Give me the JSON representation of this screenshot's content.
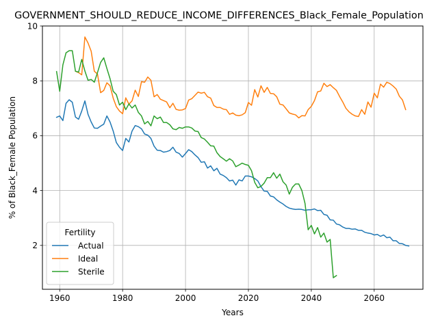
{
  "chart_data": {
    "type": "line",
    "title": "GOVERNMENT_SHOULD_REDUCE_INCOME_DIFFERENCES_Black_Female_Population",
    "xlabel": "Years",
    "ylabel": "% of Black_Female Population",
    "xlim": [
      1954.5,
      2075.5
    ],
    "ylim": [
      0.4,
      10.0
    ],
    "xticks": [
      1960,
      1980,
      2000,
      2020,
      2040,
      2060
    ],
    "yticks": [
      2,
      4,
      6,
      8,
      10
    ],
    "grid": true,
    "legend": {
      "title": "Fertility",
      "placement": "lower-left"
    },
    "series": [
      {
        "name": "Actual",
        "color": "#1f77b4",
        "points": [
          [
            1959,
            6.67
          ],
          [
            1960,
            6.72
          ],
          [
            1961,
            6.55
          ],
          [
            1962,
            7.18
          ],
          [
            1963,
            7.31
          ],
          [
            1964,
            7.22
          ],
          [
            1965,
            6.68
          ],
          [
            1966,
            6.6
          ],
          [
            1967,
            6.9
          ],
          [
            1968,
            7.27
          ],
          [
            1969,
            6.78
          ],
          [
            1970,
            6.5
          ],
          [
            1971,
            6.28
          ],
          [
            1972,
            6.27
          ],
          [
            1973,
            6.35
          ],
          [
            1974,
            6.42
          ],
          [
            1975,
            6.72
          ],
          [
            1976,
            6.5
          ],
          [
            1977,
            6.17
          ],
          [
            1978,
            5.75
          ],
          [
            1979,
            5.58
          ],
          [
            1980,
            5.46
          ],
          [
            1981,
            5.9
          ],
          [
            1982,
            5.77
          ],
          [
            1983,
            6.17
          ],
          [
            1984,
            6.37
          ],
          [
            1985,
            6.33
          ],
          [
            1986,
            6.25
          ],
          [
            1987,
            6.06
          ],
          [
            1988,
            6.02
          ],
          [
            1989,
            5.9
          ],
          [
            1990,
            5.62
          ],
          [
            1991,
            5.47
          ],
          [
            1992,
            5.46
          ],
          [
            1993,
            5.4
          ],
          [
            1994,
            5.42
          ],
          [
            1995,
            5.46
          ],
          [
            1996,
            5.58
          ],
          [
            1997,
            5.4
          ],
          [
            1998,
            5.35
          ],
          [
            1999,
            5.22
          ],
          [
            2000,
            5.35
          ],
          [
            2001,
            5.49
          ],
          [
            2002,
            5.42
          ],
          [
            2003,
            5.3
          ],
          [
            2004,
            5.2
          ],
          [
            2005,
            5.03
          ],
          [
            2006,
            5.05
          ],
          [
            2007,
            4.82
          ],
          [
            2008,
            4.9
          ],
          [
            2009,
            4.72
          ],
          [
            2010,
            4.81
          ],
          [
            2011,
            4.6
          ],
          [
            2012,
            4.55
          ],
          [
            2013,
            4.47
          ],
          [
            2014,
            4.35
          ],
          [
            2015,
            4.38
          ],
          [
            2016,
            4.2
          ],
          [
            2017,
            4.39
          ],
          [
            2018,
            4.35
          ],
          [
            2019,
            4.53
          ],
          [
            2020,
            4.53
          ],
          [
            2021,
            4.5
          ],
          [
            2022,
            4.44
          ],
          [
            2023,
            4.35
          ],
          [
            2024,
            4.14
          ],
          [
            2025,
            3.98
          ],
          [
            2026,
            3.97
          ],
          [
            2027,
            3.8
          ],
          [
            2028,
            3.77
          ],
          [
            2029,
            3.66
          ],
          [
            2030,
            3.58
          ],
          [
            2031,
            3.51
          ],
          [
            2032,
            3.42
          ],
          [
            2033,
            3.36
          ],
          [
            2034,
            3.33
          ],
          [
            2035,
            3.31
          ],
          [
            2036,
            3.32
          ],
          [
            2037,
            3.31
          ],
          [
            2038,
            3.28
          ],
          [
            2039,
            3.3
          ],
          [
            2040,
            3.3
          ],
          [
            2041,
            3.33
          ],
          [
            2042,
            3.27
          ],
          [
            2043,
            3.28
          ],
          [
            2044,
            3.13
          ],
          [
            2045,
            3.1
          ],
          [
            2046,
            2.93
          ],
          [
            2047,
            2.92
          ],
          [
            2048,
            2.78
          ],
          [
            2049,
            2.75
          ],
          [
            2050,
            2.67
          ],
          [
            2051,
            2.62
          ],
          [
            2052,
            2.62
          ],
          [
            2053,
            2.59
          ],
          [
            2054,
            2.6
          ],
          [
            2055,
            2.55
          ],
          [
            2056,
            2.55
          ],
          [
            2057,
            2.48
          ],
          [
            2058,
            2.45
          ],
          [
            2059,
            2.43
          ],
          [
            2060,
            2.38
          ],
          [
            2061,
            2.4
          ],
          [
            2062,
            2.33
          ],
          [
            2063,
            2.38
          ],
          [
            2064,
            2.28
          ],
          [
            2065,
            2.3
          ],
          [
            2066,
            2.17
          ],
          [
            2067,
            2.17
          ],
          [
            2068,
            2.07
          ],
          [
            2069,
            2.06
          ],
          [
            2070,
            2.0
          ],
          [
            2071,
            1.98
          ]
        ]
      },
      {
        "name": "Ideal",
        "color": "#ff7f0e",
        "points": [
          [
            1965,
            8.35
          ],
          [
            1966,
            8.3
          ],
          [
            1967,
            8.22
          ],
          [
            1968,
            9.6
          ],
          [
            1969,
            9.38
          ],
          [
            1970,
            9.08
          ],
          [
            1971,
            8.35
          ],
          [
            1972,
            8.25
          ],
          [
            1973,
            7.57
          ],
          [
            1974,
            7.65
          ],
          [
            1975,
            7.93
          ],
          [
            1976,
            7.82
          ],
          [
            1977,
            7.37
          ],
          [
            1978,
            7.06
          ],
          [
            1979,
            6.9
          ],
          [
            1980,
            6.8
          ],
          [
            1981,
            7.38
          ],
          [
            1982,
            7.15
          ],
          [
            1983,
            7.27
          ],
          [
            1984,
            7.66
          ],
          [
            1985,
            7.43
          ],
          [
            1986,
            7.97
          ],
          [
            1987,
            7.95
          ],
          [
            1988,
            8.14
          ],
          [
            1989,
            8.02
          ],
          [
            1990,
            7.42
          ],
          [
            1991,
            7.5
          ],
          [
            1992,
            7.33
          ],
          [
            1993,
            7.28
          ],
          [
            1994,
            7.23
          ],
          [
            1995,
            7.02
          ],
          [
            1996,
            7.18
          ],
          [
            1997,
            6.96
          ],
          [
            1998,
            6.93
          ],
          [
            1999,
            6.94
          ],
          [
            2000,
            6.99
          ],
          [
            2001,
            7.3
          ],
          [
            2002,
            7.35
          ],
          [
            2003,
            7.47
          ],
          [
            2004,
            7.59
          ],
          [
            2005,
            7.55
          ],
          [
            2006,
            7.58
          ],
          [
            2007,
            7.42
          ],
          [
            2008,
            7.37
          ],
          [
            2009,
            7.1
          ],
          [
            2010,
            7.03
          ],
          [
            2011,
            7.03
          ],
          [
            2012,
            6.97
          ],
          [
            2013,
            6.95
          ],
          [
            2014,
            6.78
          ],
          [
            2015,
            6.83
          ],
          [
            2016,
            6.75
          ],
          [
            2017,
            6.73
          ],
          [
            2018,
            6.76
          ],
          [
            2019,
            6.84
          ],
          [
            2020,
            7.21
          ],
          [
            2021,
            7.11
          ],
          [
            2022,
            7.68
          ],
          [
            2023,
            7.41
          ],
          [
            2024,
            7.82
          ],
          [
            2025,
            7.58
          ],
          [
            2026,
            7.76
          ],
          [
            2027,
            7.54
          ],
          [
            2028,
            7.53
          ],
          [
            2029,
            7.42
          ],
          [
            2030,
            7.15
          ],
          [
            2031,
            7.12
          ],
          [
            2032,
            6.98
          ],
          [
            2033,
            6.83
          ],
          [
            2034,
            6.79
          ],
          [
            2035,
            6.76
          ],
          [
            2036,
            6.65
          ],
          [
            2037,
            6.73
          ],
          [
            2038,
            6.72
          ],
          [
            2039,
            6.95
          ],
          [
            2040,
            7.07
          ],
          [
            2041,
            7.28
          ],
          [
            2042,
            7.6
          ],
          [
            2043,
            7.63
          ],
          [
            2044,
            7.91
          ],
          [
            2045,
            7.79
          ],
          [
            2046,
            7.86
          ],
          [
            2047,
            7.75
          ],
          [
            2048,
            7.65
          ],
          [
            2049,
            7.43
          ],
          [
            2050,
            7.23
          ],
          [
            2051,
            7.0
          ],
          [
            2052,
            6.87
          ],
          [
            2053,
            6.78
          ],
          [
            2054,
            6.72
          ],
          [
            2055,
            6.7
          ],
          [
            2056,
            6.95
          ],
          [
            2057,
            6.78
          ],
          [
            2058,
            7.23
          ],
          [
            2059,
            7.04
          ],
          [
            2060,
            7.55
          ],
          [
            2061,
            7.38
          ],
          [
            2062,
            7.88
          ],
          [
            2063,
            7.77
          ],
          [
            2064,
            7.95
          ],
          [
            2065,
            7.9
          ],
          [
            2066,
            7.81
          ],
          [
            2067,
            7.7
          ],
          [
            2068,
            7.44
          ],
          [
            2069,
            7.3
          ],
          [
            2070,
            6.95
          ]
        ]
      },
      {
        "name": "Sterile",
        "color": "#2ca02c",
        "points": [
          [
            1959,
            8.34
          ],
          [
            1960,
            7.62
          ],
          [
            1961,
            8.58
          ],
          [
            1962,
            9.02
          ],
          [
            1963,
            9.1
          ],
          [
            1964,
            9.1
          ],
          [
            1965,
            8.35
          ],
          [
            1966,
            8.32
          ],
          [
            1967,
            8.78
          ],
          [
            1968,
            8.36
          ],
          [
            1969,
            8.02
          ],
          [
            1970,
            8.05
          ],
          [
            1971,
            7.95
          ],
          [
            1972,
            8.3
          ],
          [
            1973,
            8.67
          ],
          [
            1974,
            8.84
          ],
          [
            1975,
            8.45
          ],
          [
            1976,
            8.08
          ],
          [
            1977,
            7.62
          ],
          [
            1978,
            7.5
          ],
          [
            1979,
            7.12
          ],
          [
            1980,
            7.22
          ],
          [
            1981,
            6.95
          ],
          [
            1982,
            7.16
          ],
          [
            1983,
            7.01
          ],
          [
            1984,
            7.12
          ],
          [
            1985,
            6.85
          ],
          [
            1986,
            6.72
          ],
          [
            1987,
            6.43
          ],
          [
            1988,
            6.52
          ],
          [
            1989,
            6.36
          ],
          [
            1990,
            6.72
          ],
          [
            1991,
            6.62
          ],
          [
            1992,
            6.68
          ],
          [
            1993,
            6.48
          ],
          [
            1994,
            6.48
          ],
          [
            1995,
            6.4
          ],
          [
            1996,
            6.25
          ],
          [
            1997,
            6.22
          ],
          [
            1998,
            6.3
          ],
          [
            1999,
            6.27
          ],
          [
            2000,
            6.32
          ],
          [
            2001,
            6.32
          ],
          [
            2002,
            6.28
          ],
          [
            2003,
            6.17
          ],
          [
            2004,
            6.15
          ],
          [
            2005,
            5.93
          ],
          [
            2006,
            5.88
          ],
          [
            2007,
            5.76
          ],
          [
            2008,
            5.63
          ],
          [
            2009,
            5.62
          ],
          [
            2010,
            5.38
          ],
          [
            2011,
            5.24
          ],
          [
            2012,
            5.16
          ],
          [
            2013,
            5.07
          ],
          [
            2014,
            5.16
          ],
          [
            2015,
            5.08
          ],
          [
            2016,
            4.87
          ],
          [
            2017,
            4.93
          ],
          [
            2018,
            5.0
          ],
          [
            2019,
            4.95
          ],
          [
            2020,
            4.92
          ],
          [
            2021,
            4.72
          ],
          [
            2022,
            4.3
          ],
          [
            2023,
            4.1
          ],
          [
            2024,
            4.15
          ],
          [
            2025,
            4.27
          ],
          [
            2026,
            4.47
          ],
          [
            2027,
            4.47
          ],
          [
            2028,
            4.65
          ],
          [
            2029,
            4.45
          ],
          [
            2030,
            4.6
          ],
          [
            2031,
            4.32
          ],
          [
            2032,
            4.2
          ],
          [
            2033,
            3.87
          ],
          [
            2034,
            4.12
          ],
          [
            2035,
            4.24
          ],
          [
            2036,
            4.24
          ],
          [
            2037,
            4.0
          ],
          [
            2038,
            3.53
          ],
          [
            2039,
            2.57
          ],
          [
            2040,
            2.73
          ],
          [
            2041,
            2.42
          ],
          [
            2042,
            2.65
          ],
          [
            2043,
            2.3
          ],
          [
            2044,
            2.45
          ],
          [
            2045,
            2.12
          ],
          [
            2046,
            2.22
          ],
          [
            2047,
            0.82
          ],
          [
            2048,
            0.9
          ]
        ]
      }
    ]
  }
}
